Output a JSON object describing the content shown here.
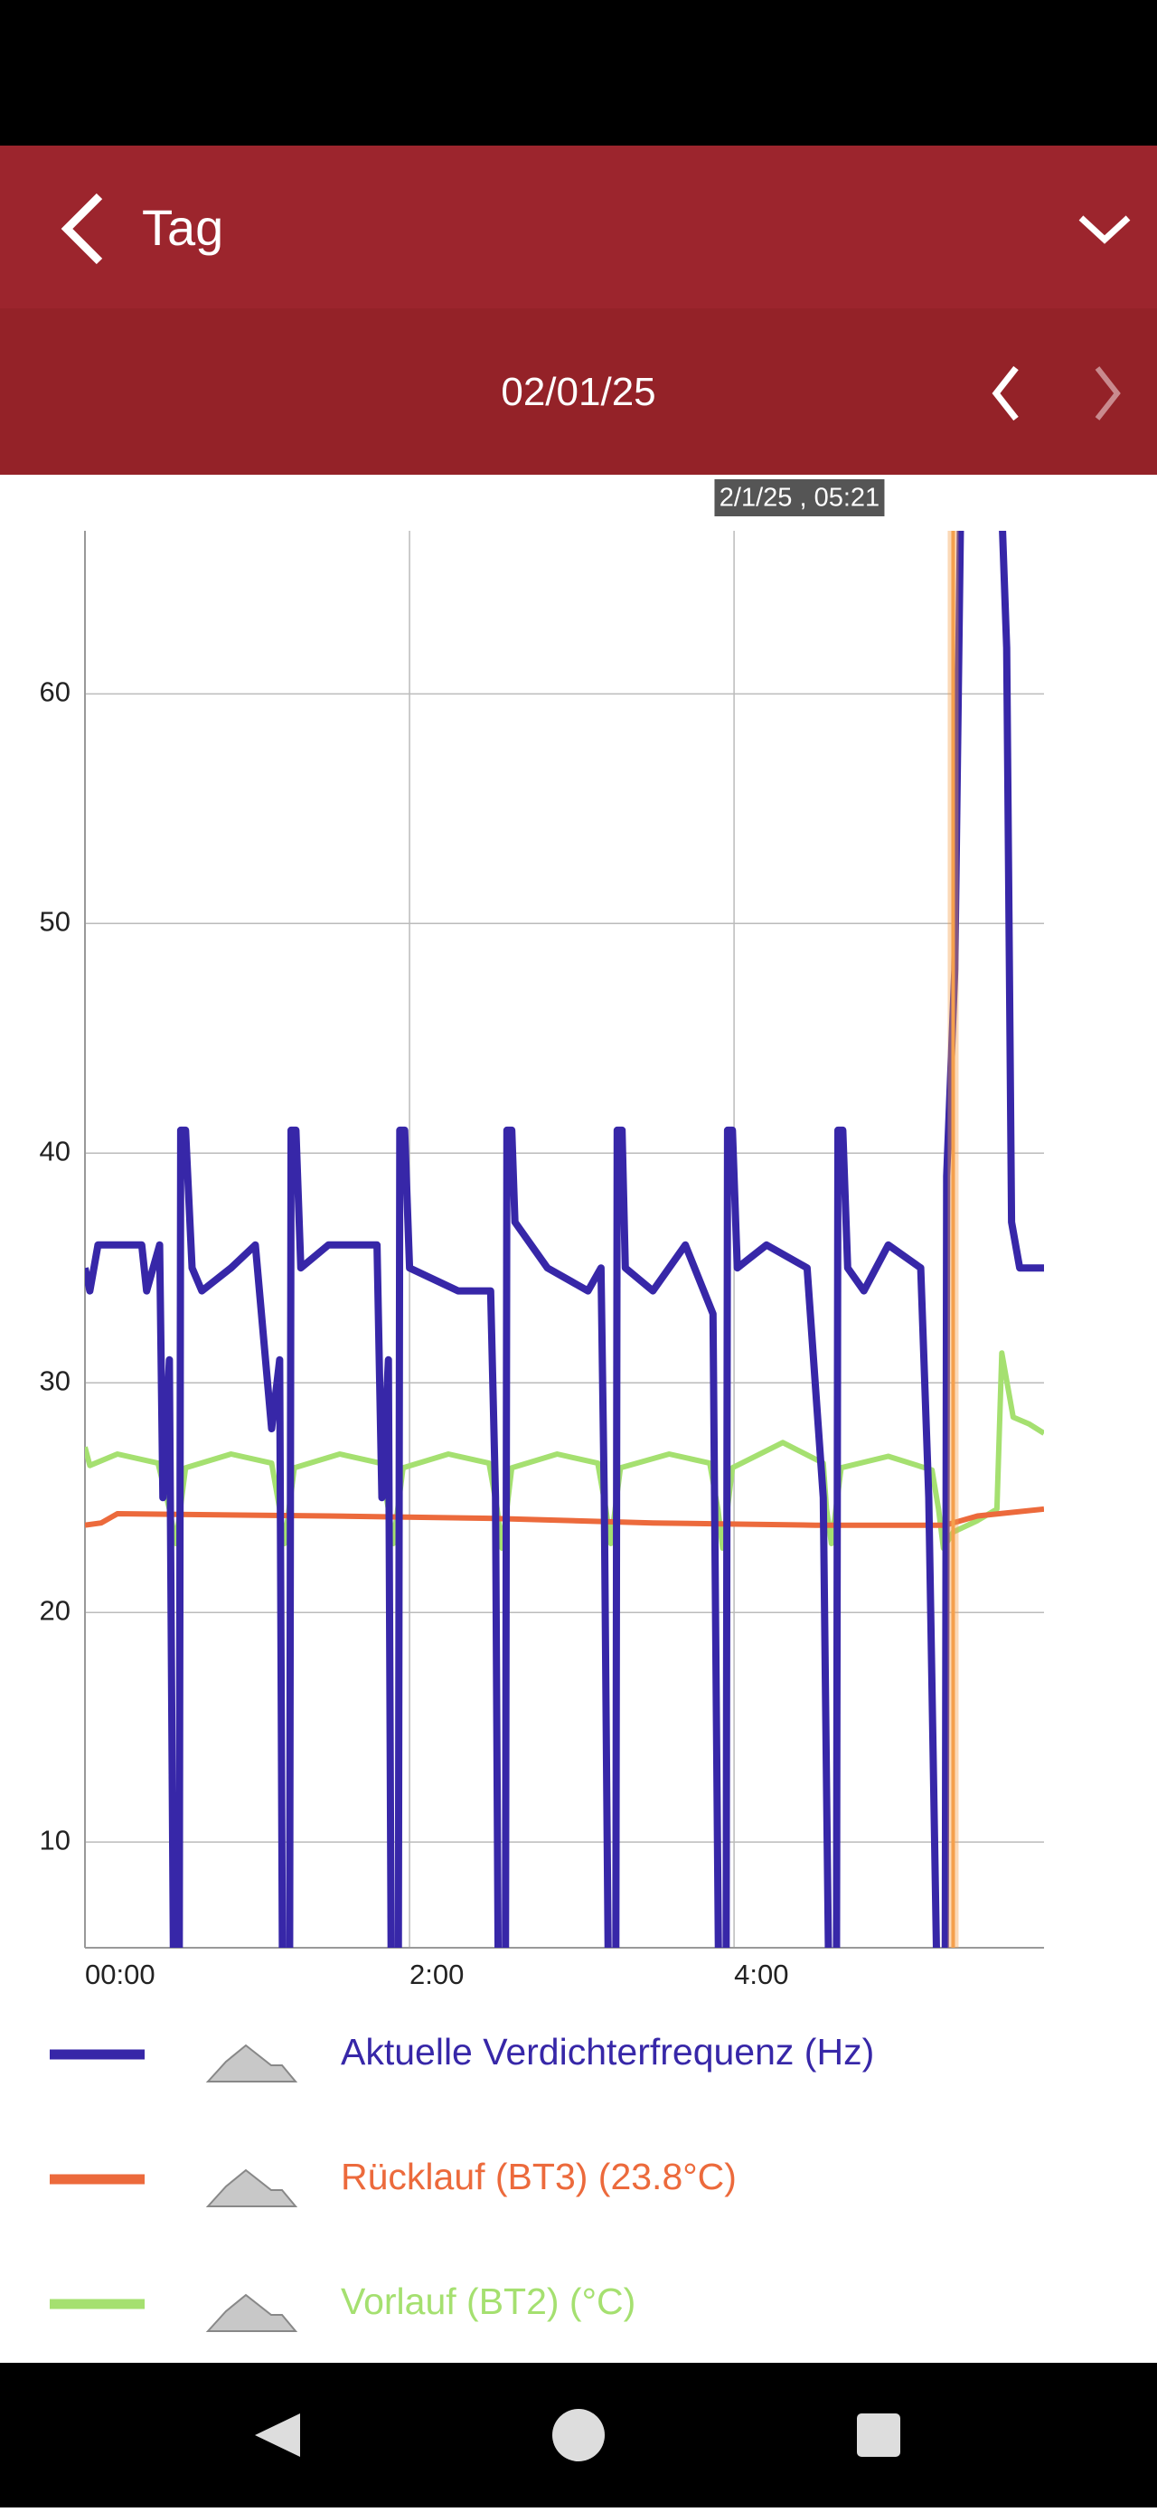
{
  "header": {
    "title": "Tag"
  },
  "date_bar": {
    "date": "02/01/25"
  },
  "chart_data": {
    "type": "line",
    "xlim": [
      0,
      5.91
    ],
    "xticks": [
      {
        "value": 0,
        "label": "00:00"
      },
      {
        "value": 2,
        "label": "2:00"
      },
      {
        "value": 4,
        "label": "4:00"
      }
    ],
    "ylim": [
      5.4,
      67.1
    ],
    "yticks": [
      10,
      20,
      30,
      40,
      50,
      60
    ],
    "grid": true,
    "cursor": {
      "x": 5.35,
      "label": "2/1/25 , 05:21",
      "color": "#f5a04c"
    },
    "series": [
      {
        "name": "Aktuelle Verdichterfrequenz (Hz)",
        "color": "#3727a8",
        "x": [
          0,
          0.03,
          0.08,
          0.35,
          0.38,
          0.42,
          0.46,
          0.48,
          0.52,
          0.55,
          0.58,
          0.59,
          0.62,
          0.66,
          0.72,
          0.9,
          1.05,
          1.15,
          1.2,
          1.22,
          1.26,
          1.27,
          1.3,
          1.33,
          1.5,
          1.8,
          1.83,
          1.87,
          1.89,
          1.93,
          1.94,
          1.97,
          2.0,
          2.3,
          2.5,
          2.53,
          2.55,
          2.59,
          2.6,
          2.63,
          2.65,
          2.85,
          3.1,
          3.18,
          3.2,
          3.23,
          3.27,
          3.28,
          3.31,
          3.33,
          3.5,
          3.7,
          3.87,
          3.91,
          3.95,
          3.96,
          3.99,
          4.02,
          4.2,
          4.45,
          4.55,
          4.59,
          4.63,
          4.64,
          4.67,
          4.7,
          4.8,
          4.95,
          5.15,
          5.2,
          5.26,
          5.3,
          5.31,
          5.36,
          5.4,
          5.64,
          5.68,
          5.71,
          5.76,
          5.91
        ],
        "values": [
          35,
          34,
          36,
          36,
          34,
          35,
          36,
          25,
          31,
          0,
          0,
          41,
          41,
          35,
          34,
          35,
          36,
          28,
          31,
          0,
          0,
          41,
          41,
          35,
          36,
          36,
          25,
          31,
          0,
          0,
          41,
          41,
          35,
          34,
          34,
          25,
          0,
          0,
          41,
          41,
          37,
          35,
          34,
          35,
          25,
          0,
          0,
          41,
          41,
          35,
          34,
          36,
          33,
          0,
          0,
          41,
          41,
          35,
          36,
          35,
          25,
          0,
          0,
          41,
          41,
          35,
          34,
          36,
          35,
          25,
          0,
          0,
          39,
          48,
          70,
          70,
          62,
          37,
          35,
          35
        ]
      },
      {
        "name": "Rücklauf (BT3) (23.8°C)",
        "color": "#ec6a3c",
        "x": [
          0,
          0.1,
          0.2,
          1.5,
          2.5,
          3.5,
          4.5,
          5.3,
          5.5,
          5.91
        ],
        "values": [
          23.8,
          23.9,
          24.3,
          24.2,
          24.1,
          23.9,
          23.8,
          23.8,
          24.2,
          24.5
        ]
      },
      {
        "name": "Vorlauf (BT2) (°C)",
        "color": "#a5e070",
        "x": [
          0,
          0.03,
          0.2,
          0.45,
          0.52,
          0.56,
          0.62,
          0.9,
          1.15,
          1.2,
          1.23,
          1.29,
          1.57,
          1.82,
          1.87,
          1.9,
          1.96,
          2.24,
          2.49,
          2.54,
          2.57,
          2.63,
          2.91,
          3.16,
          3.21,
          3.24,
          3.3,
          3.6,
          3.85,
          3.9,
          3.93,
          3.99,
          4.3,
          4.55,
          4.57,
          4.6,
          4.66,
          4.95,
          5.22,
          5.26,
          5.29,
          5.35,
          5.5,
          5.62,
          5.65,
          5.72,
          5.82,
          5.91
        ],
        "values": [
          27.2,
          26.4,
          26.9,
          26.5,
          24.5,
          23,
          26.3,
          26.9,
          26.5,
          24.5,
          23,
          26.3,
          26.9,
          26.5,
          24.5,
          23,
          26.3,
          26.9,
          26.5,
          24.5,
          22.8,
          26.3,
          26.9,
          26.5,
          24.5,
          23,
          26.3,
          26.9,
          26.5,
          24.5,
          22.8,
          26.3,
          27.4,
          26.5,
          24.5,
          23,
          26.3,
          26.8,
          26.2,
          24.5,
          22.8,
          23.5,
          24,
          24.5,
          31.3,
          28.5,
          28.2,
          27.8
        ]
      }
    ]
  }
}
